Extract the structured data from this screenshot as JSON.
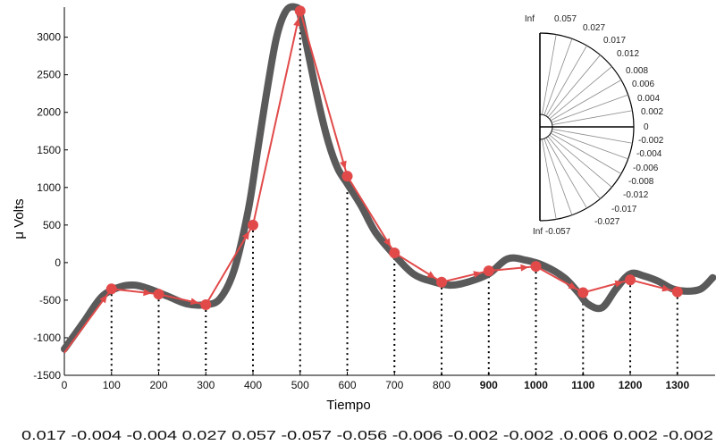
{
  "chart_data": {
    "type": "line",
    "xlabel": "Tiempo",
    "ylabel": "μ Volts",
    "xlim": [
      0,
      1380
    ],
    "ylim": [
      -1500,
      3400
    ],
    "x_ticks": [
      "0",
      "100",
      "200",
      "300",
      "400",
      "500",
      "600",
      "700",
      "800",
      "900",
      "1000",
      "1100",
      "1200",
      "1300"
    ],
    "x_ticks_bold": [
      "900",
      "1000",
      "1100",
      "1200",
      "1300"
    ],
    "y_ticks": [
      "-1500",
      "-1000",
      "-500",
      "0",
      "500",
      "1000",
      "1500",
      "2000",
      "2500",
      "3000"
    ],
    "series": [
      {
        "style": "thick-gray",
        "color": "#5a5a5a",
        "x": [
          0,
          40,
          80,
          120,
          150,
          180,
          220,
          260,
          300,
          330,
          360,
          390,
          410,
          430,
          450,
          470,
          490,
          500,
          520,
          540,
          560,
          580,
          600,
          630,
          660,
          700,
          740,
          780,
          820,
          860,
          900,
          940,
          980,
          1020,
          1060,
          1090,
          1110,
          1140,
          1170,
          1200,
          1230,
          1260,
          1290,
          1320,
          1350,
          1375
        ],
        "values": [
          -1150,
          -800,
          -450,
          -320,
          -300,
          -350,
          -450,
          -550,
          -560,
          -480,
          -100,
          700,
          1500,
          2300,
          3000,
          3350,
          3400,
          3300,
          2700,
          2100,
          1600,
          1250,
          1050,
          750,
          400,
          100,
          -150,
          -250,
          -300,
          -250,
          -150,
          50,
          30,
          -50,
          -200,
          -400,
          -550,
          -600,
          -350,
          -150,
          -180,
          -250,
          -350,
          -380,
          -350,
          -200
        ]
      },
      {
        "style": "red-markers",
        "color": "#e24a4a",
        "x": [
          0,
          100,
          200,
          300,
          400,
          500,
          600,
          700,
          800,
          900,
          1000,
          1100,
          1200,
          1300
        ],
        "values": [
          -1200,
          -350,
          -420,
          -560,
          500,
          3350,
          1150,
          130,
          -260,
          -110,
          -50,
          -400,
          -230,
          -390
        ]
      }
    ],
    "bottom_values": "0.017 -0.004 -0.004 0.027 0.057 -0.057 -0.056 -0.006 -0.002 -0.002 .0.006 0.002 -0.002",
    "inset": {
      "labels_upper": [
        "Inf",
        "0.057",
        "0.027",
        "0.017",
        "0.012",
        "0.008",
        "0.006",
        "0.004",
        "0.002",
        "0"
      ],
      "labels_lower": [
        "-0.002",
        "-0.004",
        "-0.006",
        "-0.008",
        "-0.012",
        "-0.017",
        "-0.027"
      ],
      "label_bottom_left": "Inf -0.057"
    }
  }
}
